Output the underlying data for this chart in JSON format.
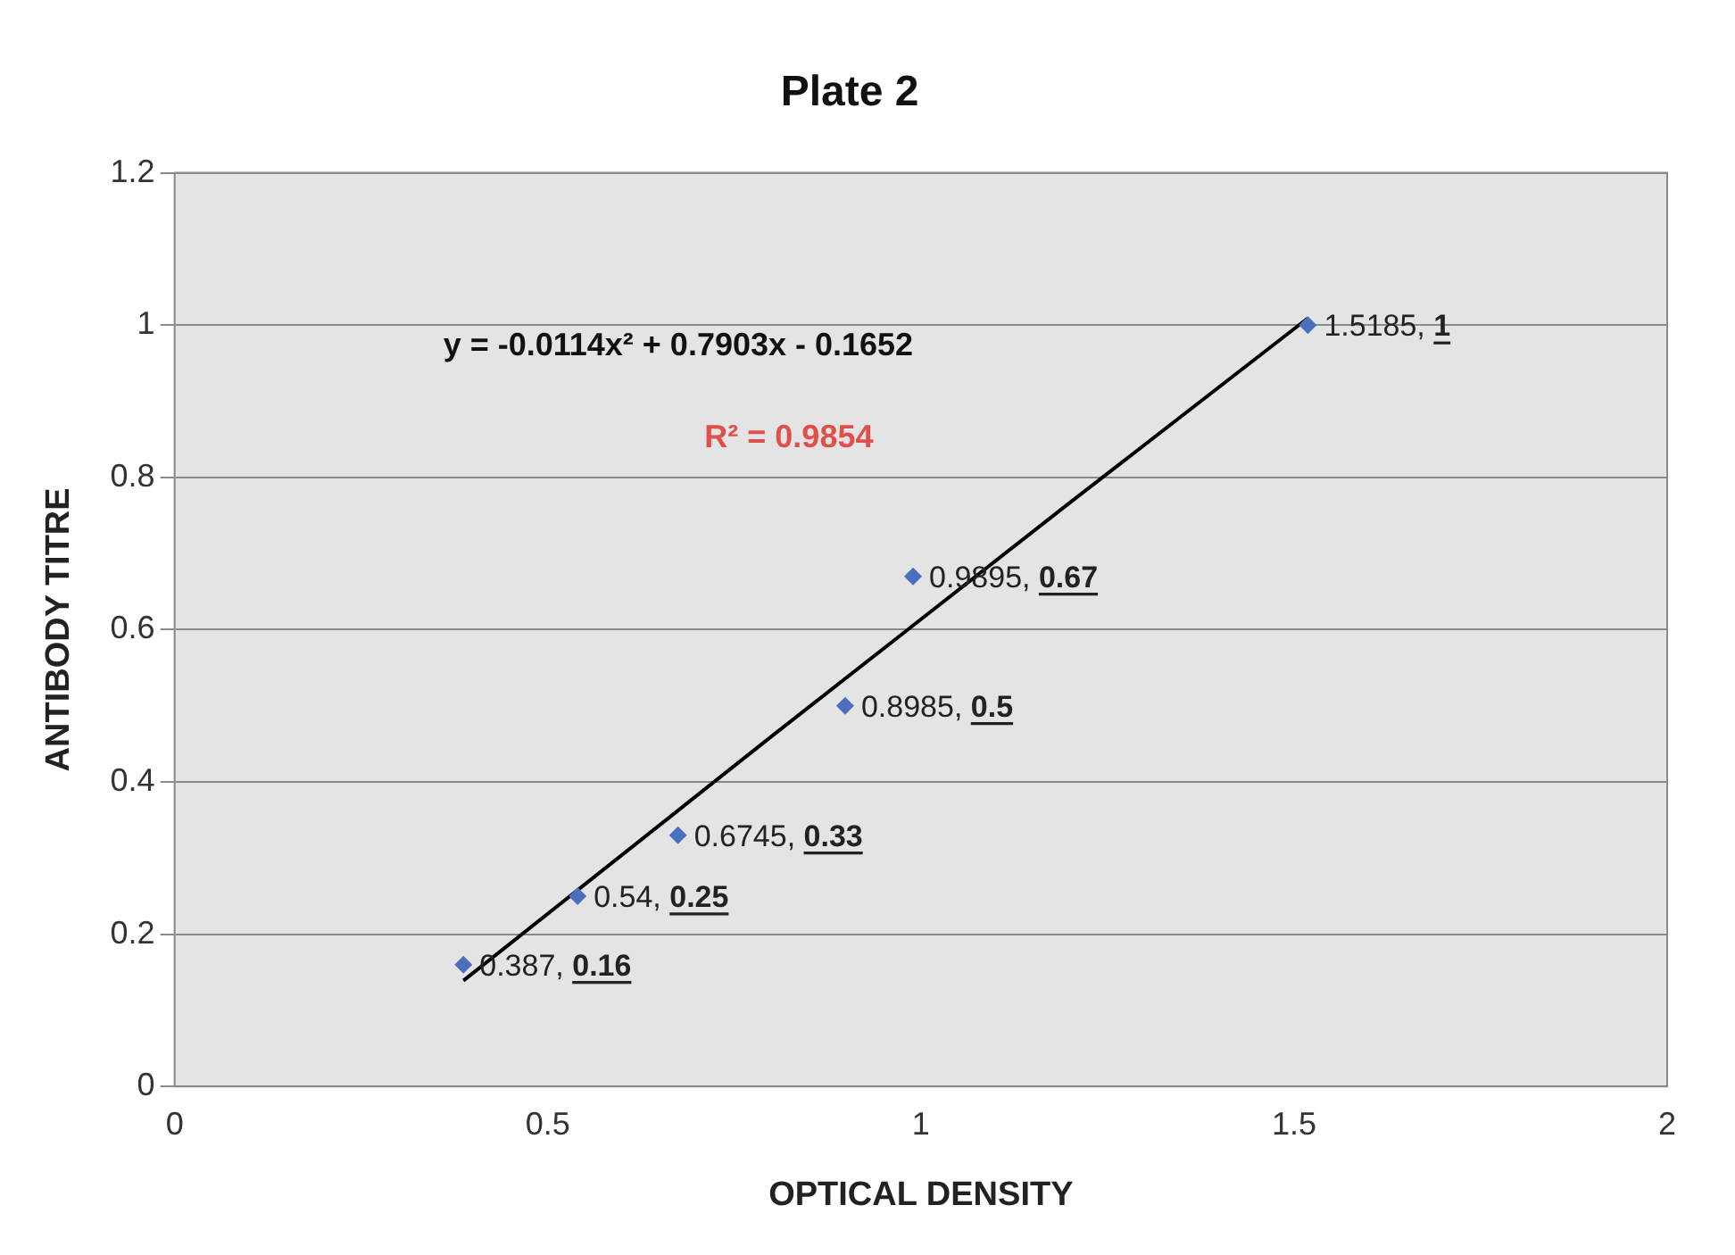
{
  "chart_data": {
    "type": "scatter",
    "title": "Plate 2",
    "xlabel": "OPTICAL DENSITY",
    "ylabel": "ANTIBODY TITRE",
    "x": [
      0.387,
      0.54,
      0.6745,
      0.8985,
      0.9895,
      1.5185
    ],
    "series": [
      {
        "color": "#4a6fbf",
        "values": [
          0.16,
          0.25,
          0.33,
          0.5,
          0.67,
          1
        ],
        "value_labels": [
          "0.387, 0.16",
          "0.54, 0.25",
          "0.6745, 0.33",
          "0.8985, 0.5",
          "0.9895, 0.67",
          "1.5185, 1"
        ],
        "marker": "diamond"
      },
      {
        "type": "line",
        "color": "#000000",
        "x": [
          0.387,
          0.8,
          1.2,
          1.5185
        ],
        "values": [
          0.139,
          0.46,
          0.767,
          1.009
        ],
        "line_style": "solid"
      }
    ],
    "annotations": [
      "y = -0.0114x² + 0.7903x - 0.1652",
      "R² = 0.9854"
    ],
    "xlim": [
      0,
      2
    ],
    "xticks": [
      0,
      0.5,
      1,
      1.5,
      2
    ],
    "ylim": [
      0,
      1.2
    ],
    "yticks": [
      0,
      0.2,
      0.4,
      0.6,
      0.8,
      1,
      1.2
    ],
    "grid": "y",
    "legend": false
  }
}
